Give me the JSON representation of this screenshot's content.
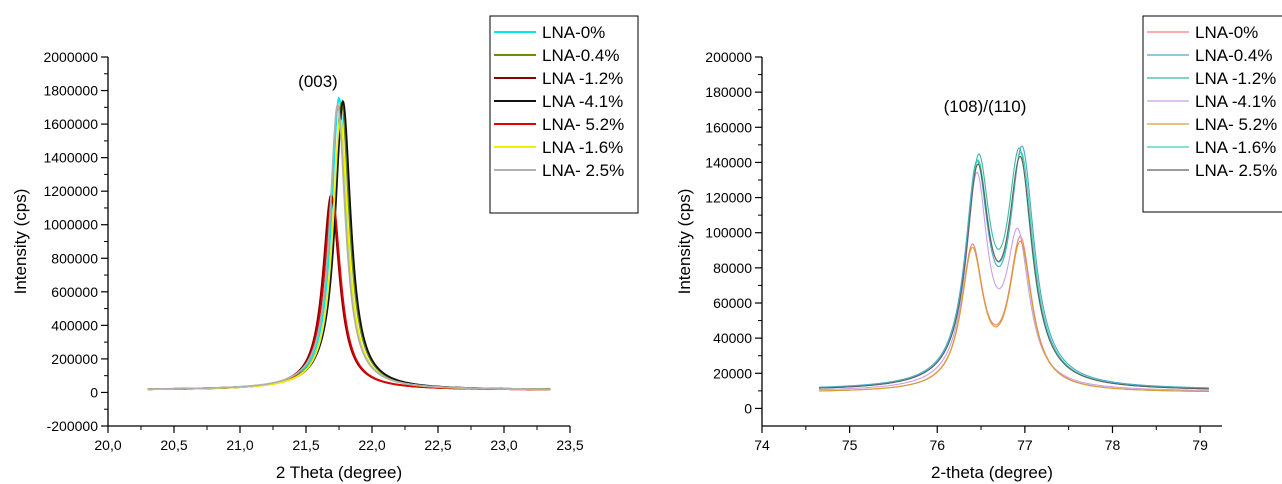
{
  "chart_data": [
    {
      "type": "line",
      "annotation": "(003)",
      "xlabel": "2 Theta (degree)",
      "ylabel": "Intensity (cps)",
      "xlim": [
        20.0,
        23.5
      ],
      "ylim": [
        -200000,
        2000000
      ],
      "x_ticks": [
        "20,0",
        "20,5",
        "21,0",
        "21,5",
        "22,0",
        "22,5",
        "23,0",
        "23,5"
      ],
      "y_ticks": [
        "-200000",
        "0",
        "200000",
        "400000",
        "600000",
        "800000",
        "1000000",
        "1200000",
        "1400000",
        "1600000",
        "1800000",
        "2000000"
      ],
      "legend_position": "top-right",
      "series": [
        {
          "name": "LNA-0%",
          "color": "#00e5ee",
          "peak_x": 21.75,
          "peak_y": 1730000,
          "base": 15000,
          "width": 0.07
        },
        {
          "name": "LNA-0.4%",
          "color": "#6b8e00",
          "peak_x": 21.77,
          "peak_y": 1700000,
          "base": 15000,
          "width": 0.072
        },
        {
          "name": "LNA -1.2%",
          "color": "#8b0000",
          "peak_x": 21.69,
          "peak_y": 1150000,
          "base": 15000,
          "width": 0.075
        },
        {
          "name": "LNA -4.1%",
          "color": "#111111",
          "peak_x": 21.78,
          "peak_y": 1710000,
          "base": 15000,
          "width": 0.072
        },
        {
          "name": "LNA- 5.2%",
          "color": "#e00000",
          "peak_x": 21.7,
          "peak_y": 1130000,
          "base": 15000,
          "width": 0.075
        },
        {
          "name": "LNA -1.6%",
          "color": "#f0f000",
          "peak_x": 21.76,
          "peak_y": 1600000,
          "base": 15000,
          "width": 0.07
        },
        {
          "name": "LNA- 2.5%",
          "color": "#b0b0b0",
          "peak_x": 21.74,
          "peak_y": 1690000,
          "base": 15000,
          "width": 0.072
        }
      ]
    },
    {
      "type": "line",
      "annotation": "(108)/(110)",
      "xlabel": "2-theta (degree)",
      "ylabel": "Intensity (cps)",
      "xlim": [
        74,
        79.25
      ],
      "ylim": [
        -10000,
        200000
      ],
      "x_ticks": [
        "74",
        "75",
        "76",
        "77",
        "78",
        "79"
      ],
      "y_ticks": [
        "0",
        "20000",
        "40000",
        "60000",
        "80000",
        "100000",
        "120000",
        "140000",
        "160000",
        "180000",
        "200000"
      ],
      "legend_position": "top-right",
      "series": [
        {
          "name": "LNA-0%",
          "color": "#f08080",
          "p1x": 76.4,
          "p1y": 100000,
          "p2x": 76.95,
          "p2y": 106000,
          "base": 9000,
          "width": 0.15
        },
        {
          "name": "LNA-0.4%",
          "color": "#4aa8c8",
          "p1x": 76.45,
          "p1y": 148000,
          "p2x": 76.97,
          "p2y": 160000,
          "base": 10500,
          "width": 0.16
        },
        {
          "name": "LNA -1.2%",
          "color": "#3cb8a0",
          "p1x": 76.47,
          "p1y": 150000,
          "p2x": 76.94,
          "p2y": 156000,
          "base": 10000,
          "width": 0.16
        },
        {
          "name": "LNA -4.1%",
          "color": "#c8a0e8",
          "p1x": 76.45,
          "p1y": 145000,
          "p2x": 76.92,
          "p2y": 105000,
          "base": 9500,
          "width": 0.15
        },
        {
          "name": "LNA- 5.2%",
          "color": "#d4a030",
          "p1x": 76.4,
          "p1y": 98000,
          "p2x": 76.95,
          "p2y": 103000,
          "base": 9000,
          "width": 0.15
        },
        {
          "name": "LNA -1.6%",
          "color": "#40d0b0",
          "p1x": 76.46,
          "p1y": 148000,
          "p2x": 76.96,
          "p2y": 155000,
          "base": 10000,
          "width": 0.16
        },
        {
          "name": "LNA- 2.5%",
          "color": "#606060",
          "p1x": 76.46,
          "p1y": 145000,
          "p2x": 76.95,
          "p2y": 152000,
          "base": 10000,
          "width": 0.16
        }
      ]
    }
  ]
}
